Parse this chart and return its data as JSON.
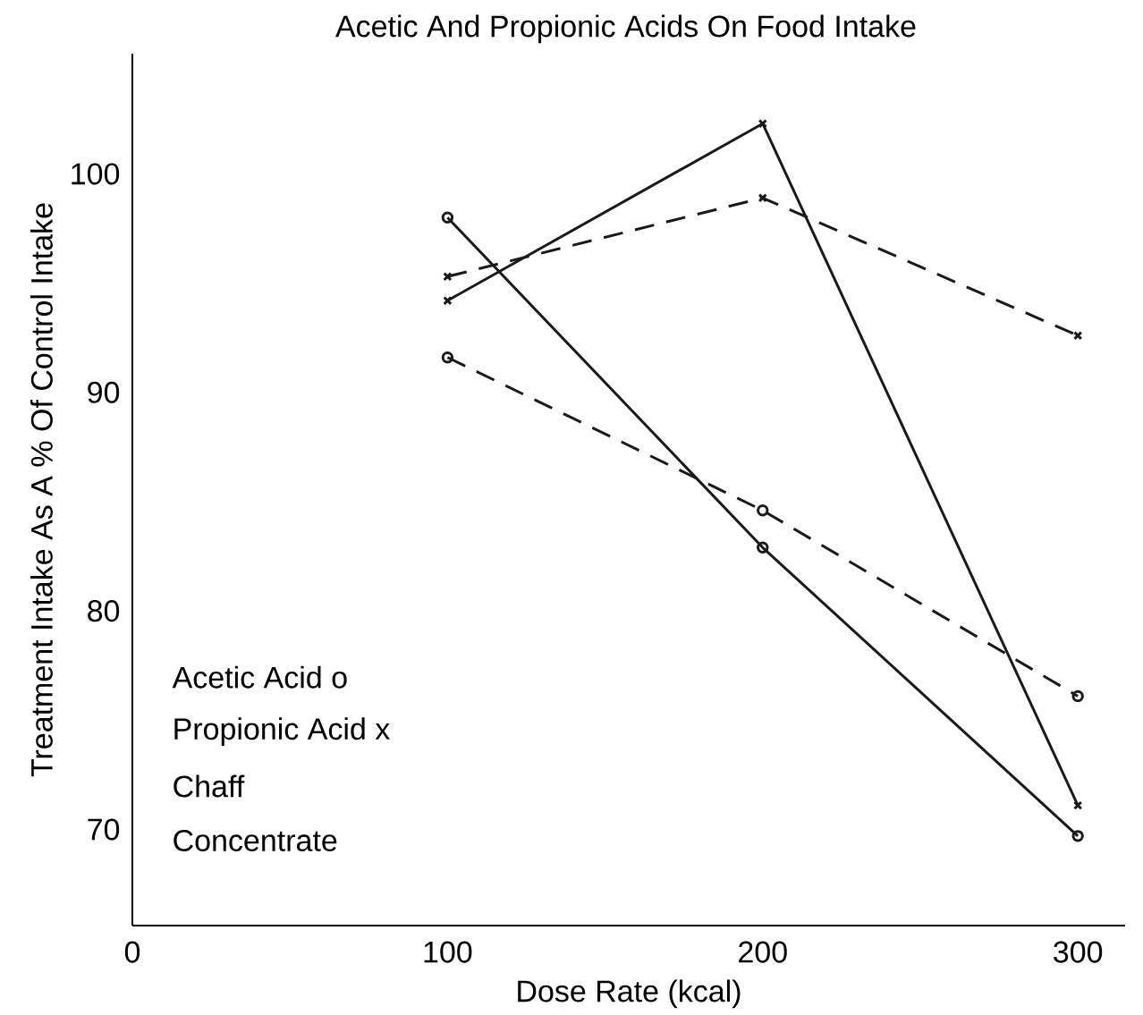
{
  "chart_data": {
    "type": "line",
    "title": "Acetic And Propionic Acids On Food Intake",
    "xlabel": "Dose Rate (kcal)",
    "ylabel": "Treatment Intake As A % Of Control Intake",
    "x": [
      100,
      200,
      300
    ],
    "series": [
      {
        "color": "#1a1a1a",
        "marker": "circle",
        "line_style": "solid",
        "values": [
          98.0,
          82.9,
          69.7
        ]
      },
      {
        "color": "#1a1a1a",
        "marker": "circle",
        "line_style": "dashed",
        "values": [
          91.6,
          84.6,
          76.1
        ]
      },
      {
        "color": "#1a1a1a",
        "marker": "cross",
        "line_style": "solid",
        "values": [
          94.2,
          102.3,
          71.1
        ]
      },
      {
        "color": "#1a1a1a",
        "marker": "cross",
        "line_style": "dashed",
        "values": [
          95.3,
          98.9,
          92.6
        ]
      }
    ],
    "xlim": [
      0,
      315
    ],
    "ylim": [
      65.6,
      105.5
    ],
    "xticks": [
      0,
      100,
      200,
      300
    ],
    "yticks": [
      70,
      80,
      90,
      100
    ],
    "annotations": [
      "Acetic Acid o",
      "Propionic Acid x",
      "Chaff",
      "Concentrate"
    ]
  }
}
